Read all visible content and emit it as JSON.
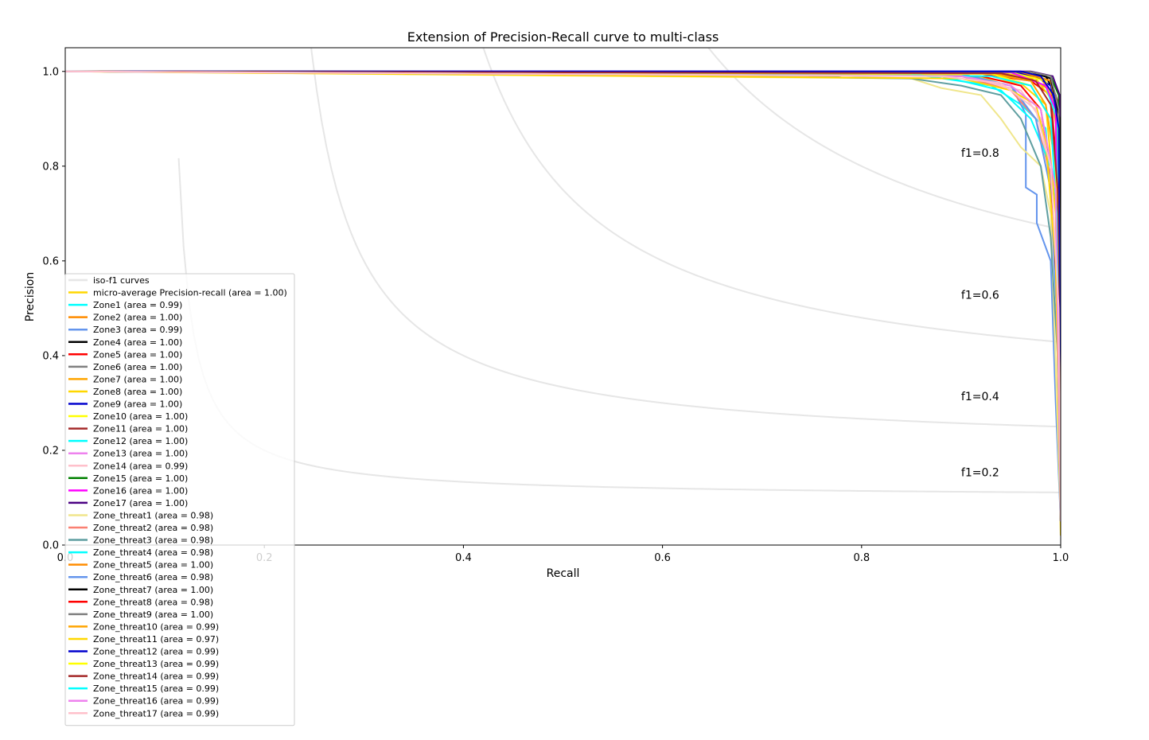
{
  "chart_data": {
    "type": "line",
    "title": "Extension of Precision-Recall curve to multi-class",
    "xlabel": "Recall",
    "ylabel": "Precision",
    "xlim": [
      0.0,
      1.0
    ],
    "ylim": [
      0.0,
      1.05
    ],
    "xticks": [
      "0.0",
      "0.2",
      "0.4",
      "0.6",
      "0.8",
      "1.0"
    ],
    "yticks": [
      "0.0",
      "0.2",
      "0.4",
      "0.6",
      "0.8",
      "1.0"
    ],
    "grid": false,
    "legend_position": "lower left",
    "iso_f1": {
      "legend_label": "iso-f1 curves",
      "color": "#e6e6e6",
      "values": [
        0.2,
        0.4,
        0.6,
        0.8
      ],
      "labels": [
        "f1=0.2",
        "f1=0.4",
        "f1=0.6",
        "f1=0.8"
      ]
    },
    "series": [
      {
        "name": "micro-average Precision-recall (area = 1.00)",
        "color": "#ffd700",
        "points": [
          [
            0,
            1.0
          ],
          [
            0.6,
            0.997
          ],
          [
            0.9,
            0.992
          ],
          [
            0.96,
            0.975
          ],
          [
            0.985,
            0.93
          ],
          [
            0.995,
            0.7
          ],
          [
            1.0,
            0.02
          ]
        ]
      },
      {
        "name": "Zone1 (area = 0.99)",
        "color": "#00ffff",
        "points": [
          [
            0,
            1.0
          ],
          [
            0.85,
            0.995
          ],
          [
            0.93,
            0.97
          ],
          [
            0.96,
            0.93
          ],
          [
            0.985,
            0.88
          ],
          [
            0.995,
            0.6
          ],
          [
            1.0,
            0.05
          ]
        ]
      },
      {
        "name": "Zone2 (area = 1.00)",
        "color": "#ff8c00",
        "points": [
          [
            0,
            1.0
          ],
          [
            0.92,
            0.998
          ],
          [
            0.97,
            0.985
          ],
          [
            0.99,
            0.96
          ],
          [
            0.998,
            0.85
          ],
          [
            1.0,
            0.05
          ]
        ]
      },
      {
        "name": "Zone3 (area = 0.99)",
        "color": "#6495ed",
        "points": [
          [
            0,
            1.0
          ],
          [
            0.9,
            0.995
          ],
          [
            0.95,
            0.97
          ],
          [
            0.965,
            0.91
          ],
          [
            0.965,
            0.755
          ],
          [
            0.976,
            0.74
          ],
          [
            0.976,
            0.68
          ],
          [
            0.99,
            0.6
          ],
          [
            0.995,
            0.3
          ],
          [
            1.0,
            0.05
          ]
        ]
      },
      {
        "name": "Zone4 (area = 1.00)",
        "color": "#000000",
        "points": [
          [
            0,
            1.0
          ],
          [
            0.95,
            0.999
          ],
          [
            0.985,
            0.99
          ],
          [
            0.995,
            0.95
          ],
          [
            0.999,
            0.87
          ],
          [
            1.0,
            0.05
          ]
        ]
      },
      {
        "name": "Zone5 (area = 1.00)",
        "color": "#ff0000",
        "points": [
          [
            0,
            1.0
          ],
          [
            0.92,
            0.995
          ],
          [
            0.97,
            0.98
          ],
          [
            0.99,
            0.95
          ],
          [
            0.996,
            0.8
          ],
          [
            1.0,
            0.05
          ]
        ]
      },
      {
        "name": "Zone6 (area = 1.00)",
        "color": "#808080",
        "points": [
          [
            0,
            1.0
          ],
          [
            0.96,
            0.999
          ],
          [
            0.99,
            0.98
          ],
          [
            0.998,
            0.9
          ],
          [
            1.0,
            0.05
          ]
        ]
      },
      {
        "name": "Zone7 (area = 1.00)",
        "color": "#ffa500",
        "points": [
          [
            0,
            1.0
          ],
          [
            0.95,
            0.998
          ],
          [
            0.98,
            0.985
          ],
          [
            0.996,
            0.94
          ],
          [
            1.0,
            0.05
          ]
        ]
      },
      {
        "name": "Zone8 (area = 1.00)",
        "color": "#ffd700",
        "points": [
          [
            0,
            1.0
          ],
          [
            0.94,
            0.997
          ],
          [
            0.975,
            0.985
          ],
          [
            0.995,
            0.93
          ],
          [
            1.0,
            0.05
          ]
        ]
      },
      {
        "name": "Zone9 (area = 1.00)",
        "color": "#0000cd",
        "points": [
          [
            0,
            1.0
          ],
          [
            0.95,
            1.0
          ],
          [
            0.975,
            0.99
          ],
          [
            0.99,
            0.97
          ],
          [
            0.998,
            0.9
          ],
          [
            1.0,
            0.05
          ]
        ]
      },
      {
        "name": "Zone10 (area = 1.00)",
        "color": "#ffff00",
        "points": [
          [
            0,
            1.0
          ],
          [
            0.95,
            0.998
          ],
          [
            0.985,
            0.98
          ],
          [
            0.997,
            0.9
          ],
          [
            1.0,
            0.05
          ]
        ]
      },
      {
        "name": "Zone11 (area = 1.00)",
        "color": "#a52a2a",
        "points": [
          [
            0,
            1.0
          ],
          [
            0.96,
            0.999
          ],
          [
            0.99,
            0.98
          ],
          [
            0.998,
            0.93
          ],
          [
            1.0,
            0.05
          ]
        ]
      },
      {
        "name": "Zone12 (area = 1.00)",
        "color": "#00ffff",
        "points": [
          [
            0,
            1.0
          ],
          [
            0.95,
            0.998
          ],
          [
            0.985,
            0.97
          ],
          [
            0.996,
            0.9
          ],
          [
            1.0,
            0.05
          ]
        ]
      },
      {
        "name": "Zone13 (area = 1.00)",
        "color": "#ee82ee",
        "points": [
          [
            0,
            1.0
          ],
          [
            0.93,
            0.995
          ],
          [
            0.97,
            0.97
          ],
          [
            0.99,
            0.9
          ],
          [
            0.997,
            0.7
          ],
          [
            1.0,
            0.05
          ]
        ]
      },
      {
        "name": "Zone14 (area = 0.99)",
        "color": "#ffc0cb",
        "points": [
          [
            0,
            1.0
          ],
          [
            0.9,
            0.99
          ],
          [
            0.96,
            0.96
          ],
          [
            0.98,
            0.9
          ],
          [
            0.99,
            0.75
          ],
          [
            0.997,
            0.5
          ],
          [
            1.0,
            0.05
          ]
        ]
      },
      {
        "name": "Zone15 (area = 1.00)",
        "color": "#008000",
        "points": [
          [
            0,
            1.0
          ],
          [
            0.97,
            0.999
          ],
          [
            0.99,
            0.99
          ],
          [
            0.998,
            0.95
          ],
          [
            1.0,
            0.05
          ]
        ]
      },
      {
        "name": "Zone16 (area = 1.00)",
        "color": "#ff00ff",
        "points": [
          [
            0,
            1.0
          ],
          [
            0.95,
            0.998
          ],
          [
            0.985,
            0.97
          ],
          [
            0.995,
            0.92
          ],
          [
            1.0,
            0.05
          ]
        ]
      },
      {
        "name": "Zone17 (area = 1.00)",
        "color": "#4b0082",
        "points": [
          [
            0,
            1.0
          ],
          [
            0.97,
            1.0
          ],
          [
            0.992,
            0.99
          ],
          [
            0.999,
            0.95
          ],
          [
            1.0,
            0.05
          ]
        ]
      },
      {
        "name": "Zone_threat1 (area = 0.98)",
        "color": "#f0e68c",
        "points": [
          [
            0,
            1.0
          ],
          [
            0.85,
            0.985
          ],
          [
            0.88,
            0.965
          ],
          [
            0.92,
            0.95
          ],
          [
            0.94,
            0.9
          ],
          [
            0.96,
            0.84
          ],
          [
            0.98,
            0.8
          ],
          [
            0.99,
            0.7
          ],
          [
            1.0,
            0.05
          ]
        ]
      },
      {
        "name": "Zone_threat2 (area = 0.98)",
        "color": "#fa8072",
        "points": [
          [
            0,
            1.0
          ],
          [
            0.9,
            0.99
          ],
          [
            0.95,
            0.96
          ],
          [
            0.975,
            0.9
          ],
          [
            0.99,
            0.78
          ],
          [
            0.997,
            0.5
          ],
          [
            1.0,
            0.05
          ]
        ]
      },
      {
        "name": "Zone_threat3 (area = 0.98)",
        "color": "#5f9ea0",
        "points": [
          [
            0,
            1.0
          ],
          [
            0.77,
            0.99
          ],
          [
            0.78,
            0.987
          ],
          [
            0.85,
            0.985
          ],
          [
            0.9,
            0.97
          ],
          [
            0.94,
            0.95
          ],
          [
            0.96,
            0.9
          ],
          [
            0.98,
            0.8
          ],
          [
            0.99,
            0.65
          ],
          [
            0.997,
            0.4
          ],
          [
            1.0,
            0.05
          ]
        ]
      },
      {
        "name": "Zone_threat4 (area = 0.98)",
        "color": "#00ffff",
        "points": [
          [
            0,
            1.0
          ],
          [
            0.88,
            0.99
          ],
          [
            0.94,
            0.96
          ],
          [
            0.97,
            0.9
          ],
          [
            0.99,
            0.8
          ],
          [
            0.998,
            0.4
          ],
          [
            1.0,
            0.05
          ]
        ]
      },
      {
        "name": "Zone_threat5 (area = 1.00)",
        "color": "#ff8c00",
        "points": [
          [
            0,
            1.0
          ],
          [
            0.96,
            0.999
          ],
          [
            0.99,
            0.98
          ],
          [
            0.998,
            0.9
          ],
          [
            1.0,
            0.05
          ]
        ]
      },
      {
        "name": "Zone_threat6 (area = 0.98)",
        "color": "#6495ed",
        "points": [
          [
            0,
            1.0
          ],
          [
            0.9,
            0.99
          ],
          [
            0.95,
            0.97
          ],
          [
            0.975,
            0.9
          ],
          [
            0.99,
            0.75
          ],
          [
            0.997,
            0.45
          ],
          [
            1.0,
            0.05
          ]
        ]
      },
      {
        "name": "Zone_threat7 (area = 1.00)",
        "color": "#000000",
        "points": [
          [
            0,
            1.0
          ],
          [
            0.97,
            0.999
          ],
          [
            0.99,
            0.985
          ],
          [
            0.999,
            0.9
          ],
          [
            1.0,
            0.05
          ]
        ]
      },
      {
        "name": "Zone_threat8 (area = 0.98)",
        "color": "#ff0000",
        "points": [
          [
            0,
            1.0
          ],
          [
            0.92,
            0.99
          ],
          [
            0.96,
            0.97
          ],
          [
            0.98,
            0.92
          ],
          [
            0.99,
            0.8
          ],
          [
            0.997,
            0.5
          ],
          [
            1.0,
            0.05
          ]
        ]
      },
      {
        "name": "Zone_threat9 (area = 1.00)",
        "color": "#808080",
        "points": [
          [
            0,
            1.0
          ],
          [
            0.97,
            0.999
          ],
          [
            0.99,
            0.99
          ],
          [
            0.998,
            0.92
          ],
          [
            1.0,
            0.05
          ]
        ]
      },
      {
        "name": "Zone_threat10 (area = 0.99)",
        "color": "#ffa500",
        "points": [
          [
            0,
            1.0
          ],
          [
            0.93,
            0.995
          ],
          [
            0.97,
            0.98
          ],
          [
            0.985,
            0.93
          ],
          [
            0.995,
            0.8
          ],
          [
            1.0,
            0.05
          ]
        ]
      },
      {
        "name": "Zone_threat11 (area = 0.97)",
        "color": "#ffd700",
        "points": [
          [
            0,
            1.0
          ],
          [
            0.9,
            0.985
          ],
          [
            0.95,
            0.96
          ],
          [
            0.975,
            0.93
          ],
          [
            0.985,
            0.85
          ],
          [
            0.995,
            0.6
          ],
          [
            1.0,
            0.05
          ]
        ]
      },
      {
        "name": "Zone_threat12 (area = 0.99)",
        "color": "#0000cd",
        "points": [
          [
            0,
            1.0
          ],
          [
            0.96,
            1.0
          ],
          [
            0.98,
            0.99
          ],
          [
            0.993,
            0.95
          ],
          [
            0.998,
            0.88
          ],
          [
            1.0,
            0.05
          ]
        ]
      },
      {
        "name": "Zone_threat13 (area = 0.99)",
        "color": "#ffff00",
        "points": [
          [
            0,
            1.0
          ],
          [
            0.93,
            0.995
          ],
          [
            0.97,
            0.97
          ],
          [
            0.99,
            0.9
          ],
          [
            0.997,
            0.7
          ],
          [
            1.0,
            0.05
          ]
        ]
      },
      {
        "name": "Zone_threat14 (area = 0.99)",
        "color": "#a52a2a",
        "points": [
          [
            0,
            1.0
          ],
          [
            0.94,
            0.996
          ],
          [
            0.975,
            0.98
          ],
          [
            0.99,
            0.93
          ],
          [
            0.997,
            0.75
          ],
          [
            1.0,
            0.05
          ]
        ]
      },
      {
        "name": "Zone_threat15 (area = 0.99)",
        "color": "#00ffff",
        "points": [
          [
            0,
            1.0
          ],
          [
            0.93,
            0.99
          ],
          [
            0.97,
            0.97
          ],
          [
            0.99,
            0.9
          ],
          [
            0.996,
            0.7
          ],
          [
            1.0,
            0.05
          ]
        ]
      },
      {
        "name": "Zone_threat16 (area = 0.99)",
        "color": "#ee82ee",
        "points": [
          [
            0,
            1.0
          ],
          [
            0.9,
            0.99
          ],
          [
            0.95,
            0.97
          ],
          [
            0.98,
            0.92
          ],
          [
            0.995,
            0.75
          ],
          [
            1.0,
            0.05
          ]
        ]
      },
      {
        "name": "Zone_threat17 (area = 0.99)",
        "color": "#ffc0cb",
        "points": [
          [
            0,
            1.0
          ],
          [
            0.88,
            0.99
          ],
          [
            0.94,
            0.975
          ],
          [
            0.975,
            0.92
          ],
          [
            0.99,
            0.8
          ],
          [
            0.998,
            0.5
          ],
          [
            1.0,
            0.05
          ]
        ]
      }
    ]
  }
}
